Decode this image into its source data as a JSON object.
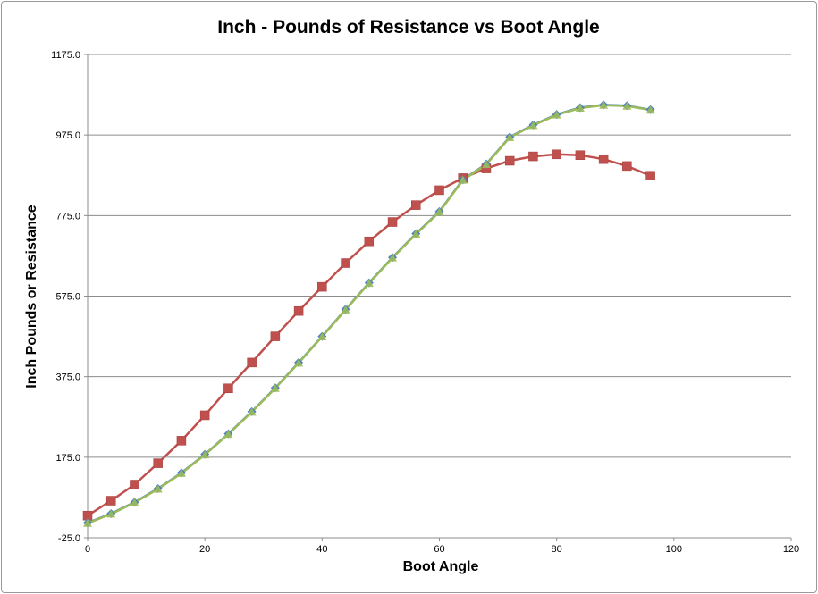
{
  "chart_data": {
    "type": "line",
    "title": "Inch - Pounds of Resistance vs Boot Angle",
    "xlabel": "Boot Angle",
    "ylabel": "Inch Pounds or Resistance",
    "xlim": [
      0,
      120
    ],
    "ylim": [
      -25,
      1175
    ],
    "x_ticks": [
      "0",
      "20",
      "40",
      "60",
      "80",
      "100",
      "120"
    ],
    "y_ticks": [
      "-25.0",
      "175.0",
      "375.0",
      "575.0",
      "775.0",
      "975.0",
      "1175.0"
    ],
    "grid": "horizontal",
    "legend": "none",
    "x": [
      0,
      4,
      8,
      12,
      16,
      20,
      24,
      28,
      32,
      36,
      40,
      44,
      48,
      52,
      56,
      60,
      64,
      68,
      72,
      76,
      80,
      84,
      88,
      92,
      96
    ],
    "series": [
      {
        "color": "#c0504d",
        "marker": "square",
        "values": [
          30,
          67,
          107,
          160,
          216,
          279,
          346,
          410,
          475,
          538,
          598,
          657,
          711,
          759,
          801,
          838,
          868,
          892,
          911,
          922,
          927,
          925,
          915,
          898,
          874
        ]
      },
      {
        "color": "#4f81bd",
        "marker": "diamond",
        "values": [
          12,
          35,
          63,
          97,
          136,
          182,
          233,
          288,
          347,
          410,
          475,
          542,
          608,
          671,
          730,
          785,
          864,
          903,
          970,
          1000,
          1026,
          1043,
          1050,
          1048,
          1038
        ]
      },
      {
        "color": "#9bbb59",
        "marker": "triangle",
        "values": [
          11,
          34,
          62,
          96,
          135,
          181,
          232,
          287,
          346,
          409,
          474,
          541,
          607,
          670,
          729,
          784,
          863,
          902,
          969,
          999,
          1025,
          1042,
          1049,
          1047,
          1037
        ]
      }
    ]
  }
}
